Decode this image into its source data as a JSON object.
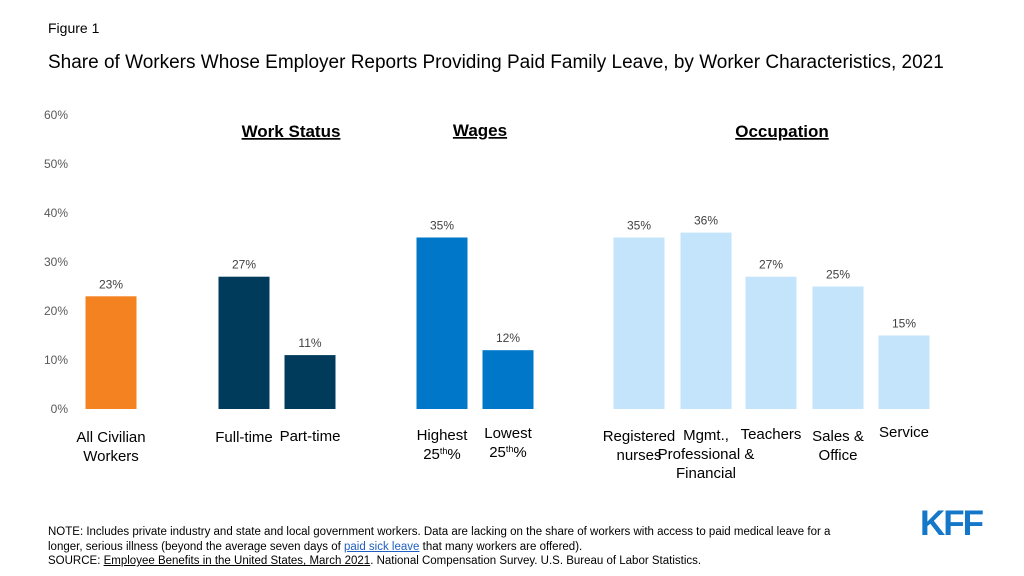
{
  "figure_label": "Figure 1",
  "title": "Share of Workers Whose Employer Reports Providing Paid Family Leave, by Worker Characteristics, 2021",
  "logo_text": "KFF",
  "colors": {
    "all": "#f58220",
    "work_status": "#003b5c",
    "wages": "#0077c8",
    "occupation": "#c3e4fb",
    "axis_text": "#595959",
    "value_text": "#404040",
    "link": "#1f5fbf"
  },
  "notes": {
    "note_prefix": "NOTE: Includes private industry and state and local government workers. Data are lacking on the share of workers with access to paid medical leave for a longer, serious illness (beyond the average seven days of",
    "note_link": "paid sick leave",
    "note_suffix": "that many workers are offered).",
    "source_prefix": "SOURCE:",
    "source_link": "Employee Benefits in the United States, March 2021",
    "source_suffix": ". National Compensation Survey. U.S. Bureau of Labor Statistics."
  },
  "chart_data": {
    "type": "bar",
    "ylim": [
      0,
      60
    ],
    "yticks": [
      "0%",
      "10%",
      "20%",
      "30%",
      "40%",
      "50%",
      "60%"
    ],
    "grid": false,
    "groups": [
      {
        "title": "Work Status"
      },
      {
        "title": "Wages"
      },
      {
        "title": "Occupation"
      }
    ],
    "bars": [
      {
        "label_lines": [
          "All Civilian",
          "Workers"
        ],
        "value": 23,
        "value_label": "23%",
        "group": "all"
      },
      {
        "label_lines": [
          "Full-time"
        ],
        "value": 27,
        "value_label": "27%",
        "group": "work_status"
      },
      {
        "label_lines": [
          "Part-time"
        ],
        "value": 11,
        "value_label": "11%",
        "group": "work_status"
      },
      {
        "label_lines": [
          "Highest",
          "25th%"
        ],
        "value": 35,
        "value_label": "35%",
        "group": "wages"
      },
      {
        "label_lines": [
          "Lowest",
          "25th%"
        ],
        "value": 12,
        "value_label": "12%",
        "group": "wages"
      },
      {
        "label_lines": [
          "Registered",
          "nurses"
        ],
        "value": 35,
        "value_label": "35%",
        "group": "occupation"
      },
      {
        "label_lines": [
          "Mgmt.,",
          "Professional &",
          "Financial"
        ],
        "value": 36,
        "value_label": "36%",
        "group": "occupation"
      },
      {
        "label_lines": [
          "Teachers"
        ],
        "value": 27,
        "value_label": "27%",
        "group": "occupation"
      },
      {
        "label_lines": [
          "Sales &",
          "Office"
        ],
        "value": 25,
        "value_label": "25%",
        "group": "occupation"
      },
      {
        "label_lines": [
          "Service"
        ],
        "value": 15,
        "value_label": "15%",
        "group": "occupation"
      }
    ]
  }
}
